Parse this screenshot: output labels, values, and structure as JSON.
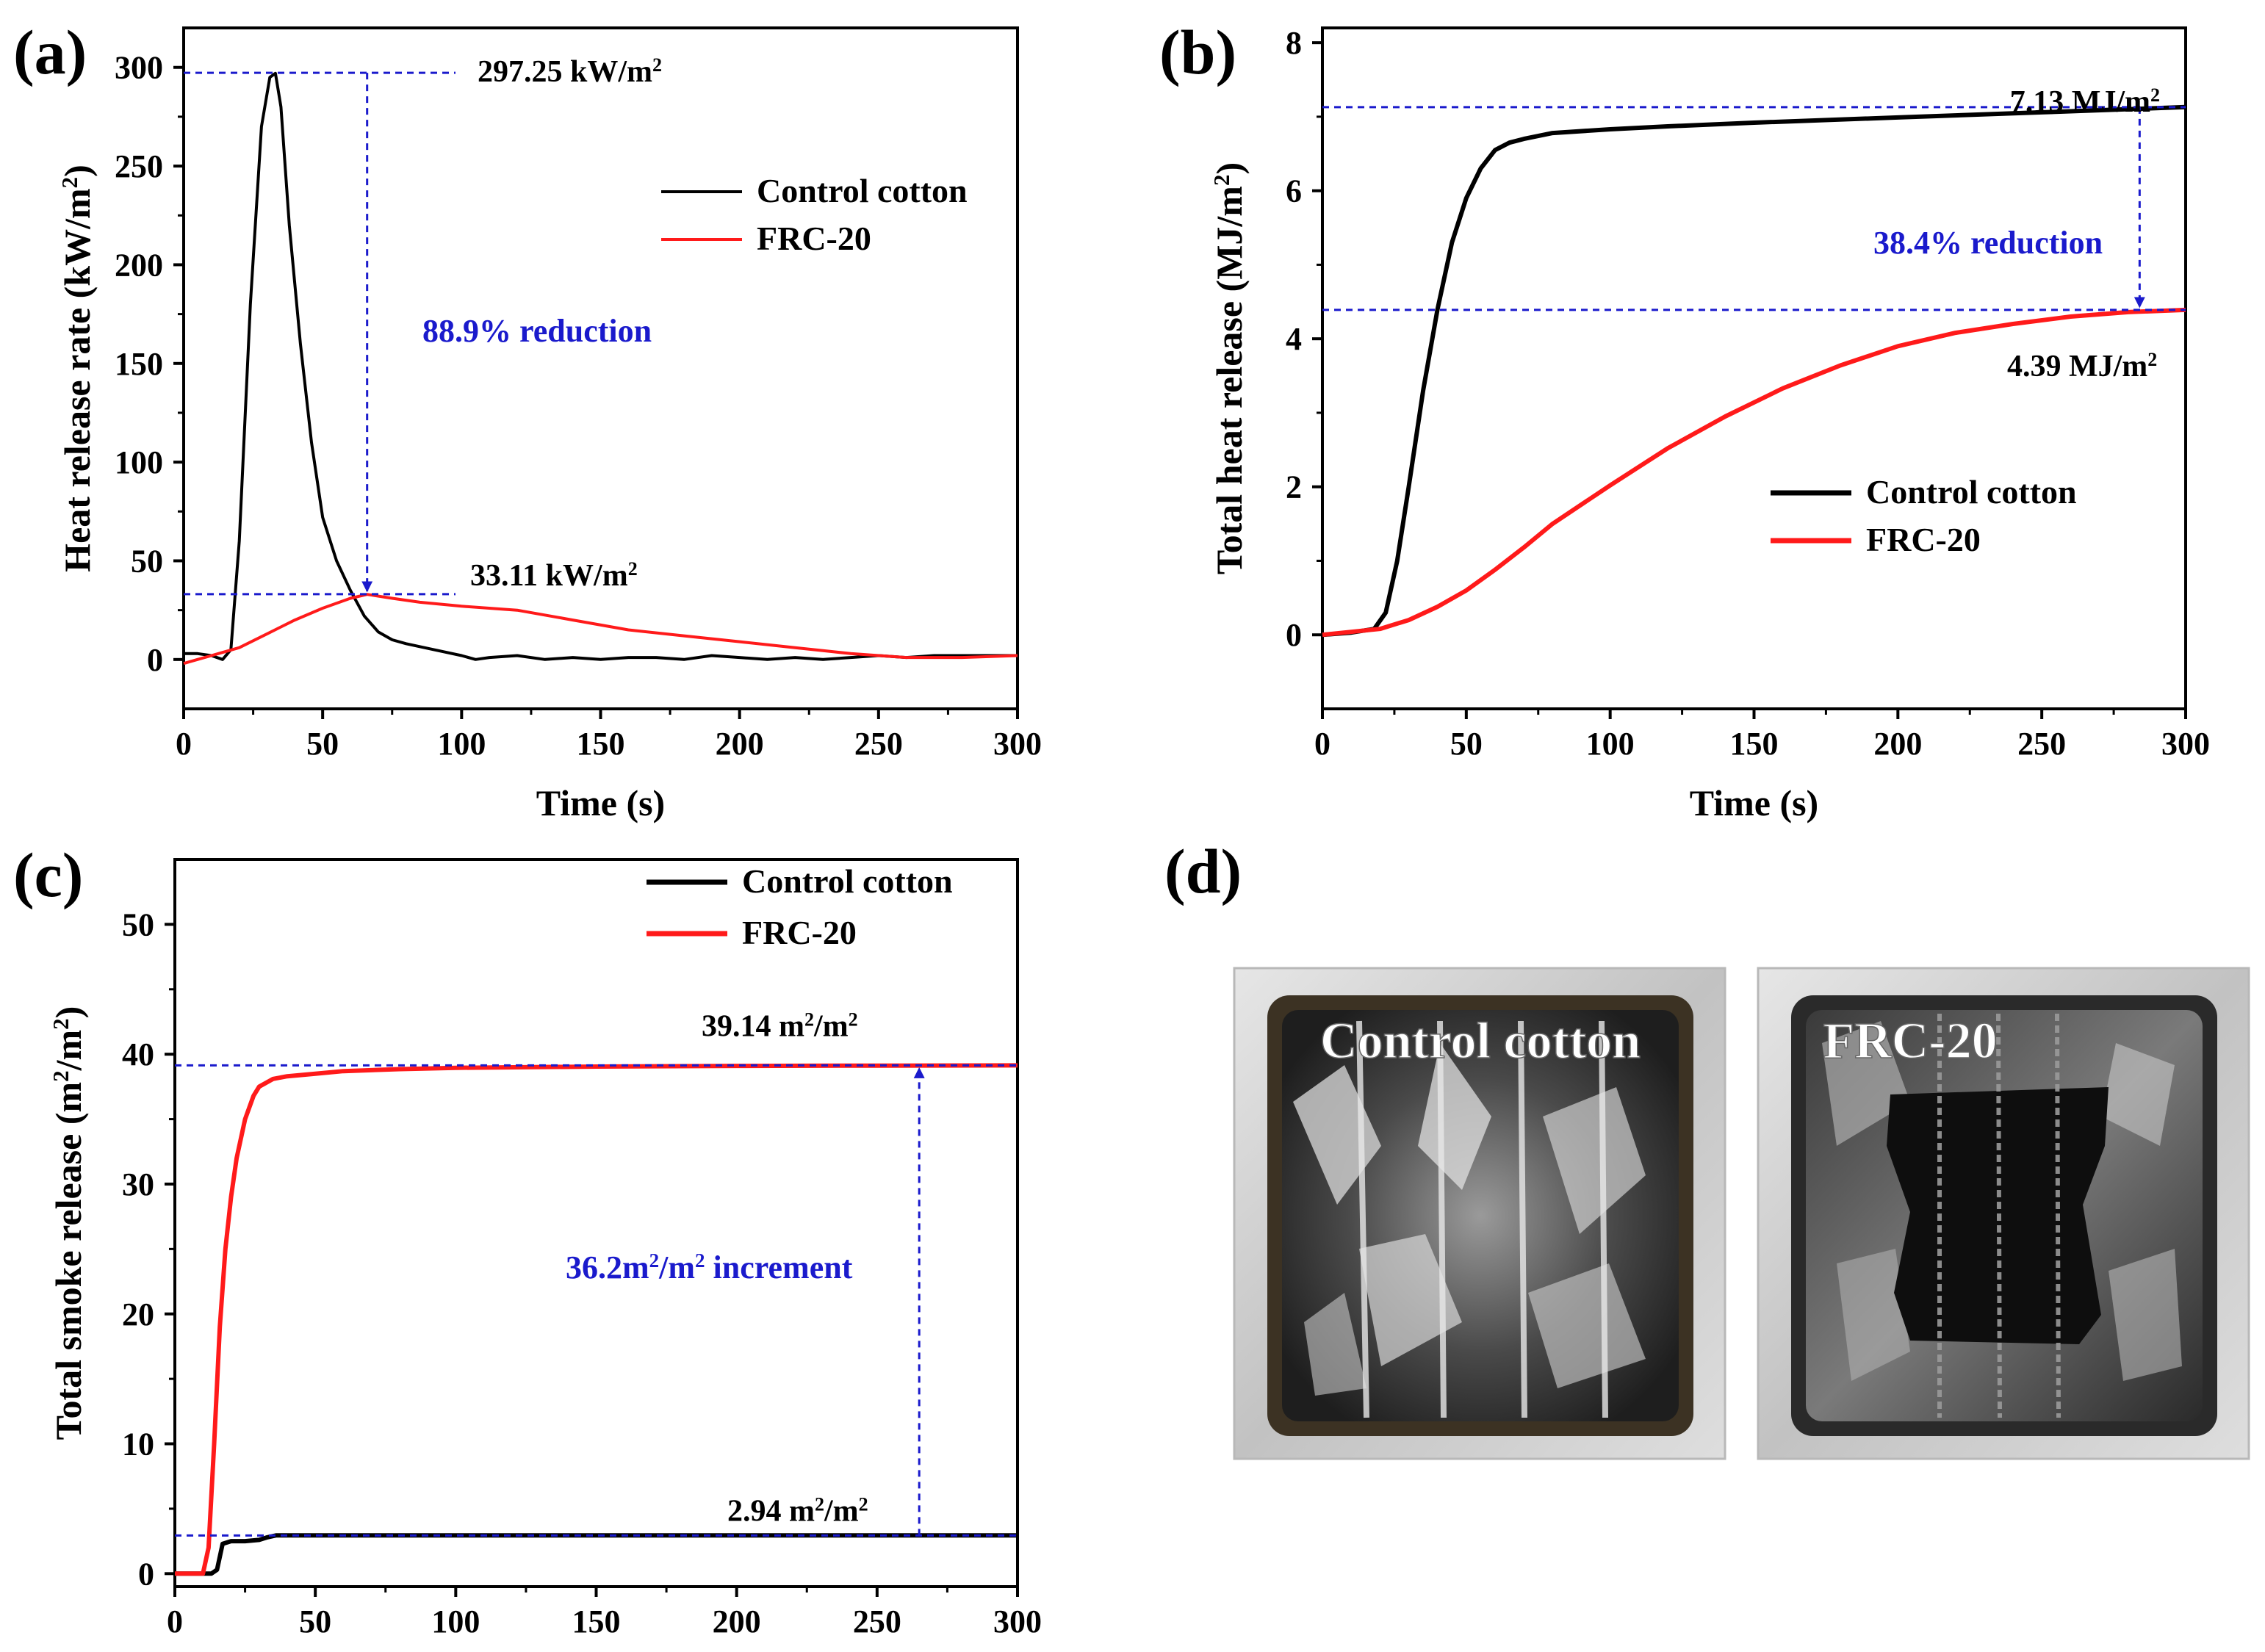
{
  "figure": {
    "colors": {
      "control": "#000000",
      "frc": "#ff1a1a",
      "annotation": "#1a1acc",
      "axis": "#000000"
    }
  },
  "chart_data": [
    {
      "id": "a",
      "type": "line",
      "panel_label": "(a)",
      "xlabel": "Time (s)",
      "ylabel_parts": [
        "Heat release rate (kW/m",
        "2",
        ")"
      ],
      "xlim": [
        0,
        300
      ],
      "ylim": [
        -25,
        320
      ],
      "xticks": [
        "0",
        "50",
        "100",
        "150",
        "200",
        "250",
        "300"
      ],
      "yticks": [
        "0",
        "50",
        "100",
        "150",
        "200",
        "250",
        "300"
      ],
      "legend": {
        "placement": "upper-right",
        "entries": [
          "Control cotton",
          "FRC-20"
        ]
      },
      "series": [
        {
          "name": "Control cotton",
          "color_key": "control",
          "x": [
            0,
            5,
            10,
            14,
            17,
            20,
            24,
            28,
            31,
            33,
            35,
            38,
            42,
            46,
            50,
            55,
            60,
            65,
            70,
            75,
            80,
            90,
            100,
            105,
            110,
            120,
            130,
            140,
            150,
            160,
            170,
            180,
            190,
            200,
            210,
            220,
            230,
            240,
            250,
            260,
            270,
            280,
            290,
            300
          ],
          "y": [
            3,
            3,
            2,
            0,
            5,
            60,
            180,
            270,
            295,
            297,
            280,
            220,
            160,
            110,
            72,
            50,
            35,
            22,
            14,
            10,
            8,
            5,
            2,
            0,
            1,
            2,
            0,
            1,
            0,
            1,
            1,
            0,
            2,
            1,
            0,
            1,
            0,
            1,
            2,
            1,
            2,
            2,
            2,
            2
          ]
        },
        {
          "name": "FRC-20",
          "color_key": "frc",
          "x": [
            0,
            5,
            10,
            20,
            30,
            40,
            50,
            60,
            66,
            75,
            85,
            100,
            120,
            140,
            160,
            180,
            200,
            220,
            240,
            260,
            280,
            300
          ],
          "y": [
            -2,
            0,
            2,
            6,
            13,
            20,
            26,
            31,
            33,
            31,
            29,
            27,
            25,
            20,
            15,
            12,
            9,
            6,
            3,
            1,
            1,
            2
          ]
        }
      ],
      "annotations": [
        {
          "text_parts": [
            "297.25 kW/m",
            "2"
          ]
        },
        {
          "text_parts": [
            "33.11 kW/m",
            "2"
          ]
        },
        {
          "text_parts": [
            "88.9% reduction"
          ]
        }
      ],
      "reference_values": {
        "peak_control": 297.25,
        "peak_frc": 33.11,
        "peak_time_control": 33,
        "peak_time_frc": 66
      }
    },
    {
      "id": "b",
      "type": "line",
      "panel_label": "(b)",
      "xlabel": "Time (s)",
      "ylabel_parts": [
        "Total heat release (MJ/m",
        "2",
        ")"
      ],
      "xlim": [
        0,
        300
      ],
      "ylim": [
        -1,
        8.2
      ],
      "xticks": [
        "0",
        "50",
        "100",
        "150",
        "200",
        "250",
        "300"
      ],
      "yticks": [
        "0",
        "2",
        "4",
        "6",
        "8"
      ],
      "legend": {
        "placement": "lower-right",
        "entries": [
          "Control cotton",
          "FRC-20"
        ]
      },
      "series": [
        {
          "name": "Control cotton",
          "color_key": "control",
          "x": [
            0,
            10,
            18,
            22,
            26,
            30,
            35,
            40,
            45,
            50,
            55,
            60,
            65,
            70,
            80,
            100,
            120,
            150,
            200,
            250,
            300
          ],
          "y": [
            0,
            0.03,
            0.08,
            0.3,
            1.0,
            2.0,
            3.3,
            4.4,
            5.3,
            5.9,
            6.3,
            6.55,
            6.65,
            6.7,
            6.78,
            6.83,
            6.87,
            6.92,
            6.99,
            7.06,
            7.13
          ]
        },
        {
          "name": "FRC-20",
          "color_key": "frc",
          "x": [
            0,
            10,
            20,
            30,
            40,
            50,
            60,
            70,
            80,
            100,
            120,
            140,
            160,
            180,
            200,
            220,
            240,
            260,
            280,
            300
          ],
          "y": [
            0,
            0.04,
            0.08,
            0.2,
            0.38,
            0.6,
            0.88,
            1.18,
            1.5,
            2.02,
            2.52,
            2.95,
            3.33,
            3.64,
            3.9,
            4.08,
            4.2,
            4.3,
            4.36,
            4.39
          ]
        }
      ],
      "annotations": [
        {
          "text_parts": [
            "7.13 MJ/m",
            "2"
          ]
        },
        {
          "text_parts": [
            "4.39 MJ/m",
            "2"
          ]
        },
        {
          "text_parts": [
            "38.4% reduction"
          ]
        }
      ],
      "reference_values": {
        "control_final": 7.13,
        "frc_final": 4.39,
        "arrow_x": 284
      }
    },
    {
      "id": "c",
      "type": "line",
      "panel_label": "(c)",
      "xlabel": "",
      "ylabel_parts": [
        "Total smoke release (m",
        "2",
        "/m",
        "2",
        ")"
      ],
      "xlim": [
        0,
        300
      ],
      "ylim": [
        -1,
        55
      ],
      "xticks": [
        "0",
        "50",
        "100",
        "150",
        "200",
        "250",
        "300"
      ],
      "yticks": [
        "0",
        "10",
        "20",
        "30",
        "40",
        "50"
      ],
      "legend": {
        "placement": "upper-right",
        "entries": [
          "Control cotton",
          "FRC-20"
        ]
      },
      "series": [
        {
          "name": "Control cotton",
          "color_key": "control",
          "x": [
            0,
            10,
            13,
            15,
            17,
            20,
            25,
            30,
            33,
            36,
            50,
            100,
            150,
            200,
            250,
            300
          ],
          "y": [
            0,
            0,
            0,
            0.3,
            2.3,
            2.5,
            2.5,
            2.6,
            2.8,
            2.94,
            2.94,
            2.94,
            2.94,
            2.94,
            2.94,
            2.94
          ]
        },
        {
          "name": "FRC-20",
          "color_key": "frc",
          "x": [
            0,
            10,
            12,
            14,
            16,
            18,
            20,
            22,
            25,
            28,
            30,
            35,
            40,
            50,
            60,
            80,
            100,
            150,
            200,
            250,
            300
          ],
          "y": [
            0,
            0,
            2,
            10,
            19,
            25,
            29,
            32,
            35,
            36.8,
            37.5,
            38.1,
            38.3,
            38.5,
            38.7,
            38.85,
            38.95,
            39.05,
            39.1,
            39.12,
            39.14
          ]
        }
      ],
      "annotations": [
        {
          "text_parts": [
            "39.14 m",
            "2",
            "/m",
            "2"
          ]
        },
        {
          "text_parts": [
            "2.94 m",
            "2",
            "/m",
            "2"
          ]
        },
        {
          "text_parts": [
            "36.2m",
            "2",
            "/m",
            "2",
            " increment"
          ]
        }
      ],
      "reference_values": {
        "frc_final": 39.14,
        "control_final": 2.94,
        "arrow_x": 265
      }
    }
  ],
  "panel_d": {
    "label": "(d)",
    "photos": [
      {
        "caption": "Control cotton"
      },
      {
        "caption": "FRC-20"
      }
    ]
  }
}
